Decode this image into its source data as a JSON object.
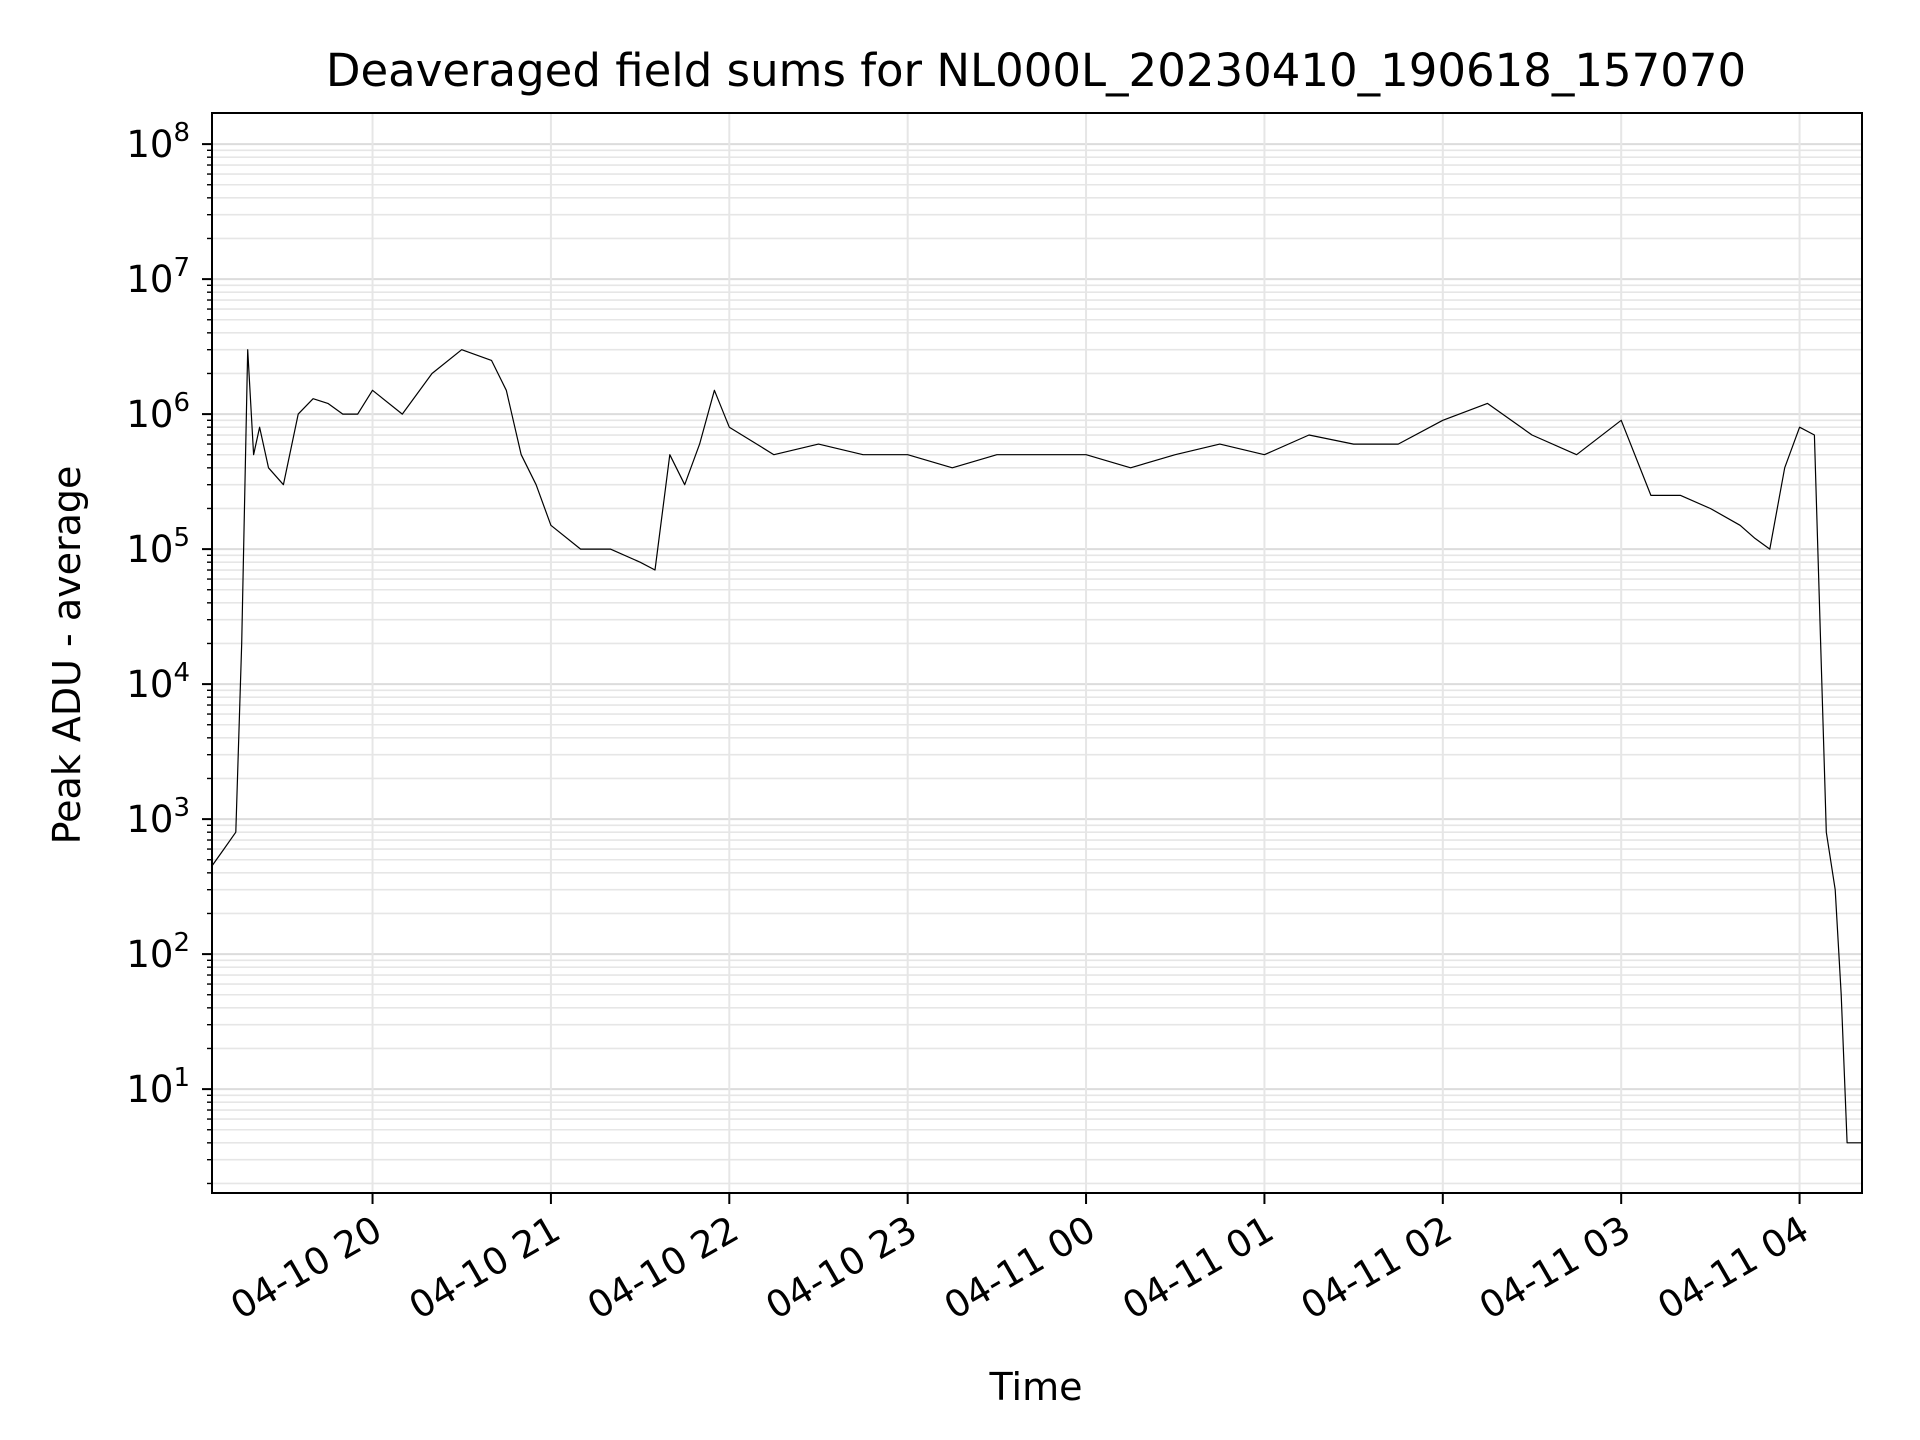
{
  "chart_data": {
    "type": "line",
    "title": "Deaveraged field sums for NL000L_20230410_190618_157070",
    "xlabel": "Time",
    "ylabel": "Peak ADU - average",
    "yscale": "log",
    "ylim": [
      1.7,
      170000000
    ],
    "xlim": [
      "2023-04-10 19:06",
      "2023-04-11 04:21"
    ],
    "x_tick_labels": [
      "04-10 20",
      "04-10 21",
      "04-10 22",
      "04-10 23",
      "04-11 00",
      "04-11 01",
      "04-11 02",
      "04-11 03",
      "04-11 04"
    ],
    "y_ticks": [
      10,
      100,
      1000,
      10000,
      100000,
      1000000,
      10000000,
      100000000
    ],
    "y_tick_labels": [
      {
        "base": "10",
        "exp": "1"
      },
      {
        "base": "10",
        "exp": "2"
      },
      {
        "base": "10",
        "exp": "3"
      },
      {
        "base": "10",
        "exp": "4"
      },
      {
        "base": "10",
        "exp": "5"
      },
      {
        "base": "10",
        "exp": "6"
      },
      {
        "base": "10",
        "exp": "7"
      },
      {
        "base": "10",
        "exp": "8"
      }
    ],
    "grid": true,
    "series": [
      {
        "color": "#000000",
        "x": [
          "2023-04-10 19:06",
          "2023-04-10 19:10",
          "2023-04-10 19:14",
          "2023-04-10 19:16",
          "2023-04-10 19:18",
          "2023-04-10 19:20",
          "2023-04-10 19:22",
          "2023-04-10 19:25",
          "2023-04-10 19:30",
          "2023-04-10 19:35",
          "2023-04-10 19:40",
          "2023-04-10 19:45",
          "2023-04-10 19:50",
          "2023-04-10 19:55",
          "2023-04-10 20:00",
          "2023-04-10 20:10",
          "2023-04-10 20:20",
          "2023-04-10 20:30",
          "2023-04-10 20:40",
          "2023-04-10 20:45",
          "2023-04-10 20:50",
          "2023-04-10 20:55",
          "2023-04-10 21:00",
          "2023-04-10 21:10",
          "2023-04-10 21:20",
          "2023-04-10 21:30",
          "2023-04-10 21:35",
          "2023-04-10 21:40",
          "2023-04-10 21:45",
          "2023-04-10 21:50",
          "2023-04-10 21:55",
          "2023-04-10 22:00",
          "2023-04-10 22:15",
          "2023-04-10 22:30",
          "2023-04-10 22:45",
          "2023-04-10 23:00",
          "2023-04-10 23:15",
          "2023-04-10 23:30",
          "2023-04-10 23:45",
          "2023-04-11 00:00",
          "2023-04-11 00:15",
          "2023-04-11 00:30",
          "2023-04-11 00:45",
          "2023-04-11 01:00",
          "2023-04-11 01:15",
          "2023-04-11 01:30",
          "2023-04-11 01:45",
          "2023-04-11 02:00",
          "2023-04-11 02:15",
          "2023-04-11 02:30",
          "2023-04-11 02:45",
          "2023-04-11 03:00",
          "2023-04-11 03:10",
          "2023-04-11 03:20",
          "2023-04-11 03:30",
          "2023-04-11 03:40",
          "2023-04-11 03:45",
          "2023-04-11 03:50",
          "2023-04-11 03:55",
          "2023-04-11 04:00",
          "2023-04-11 04:05",
          "2023-04-11 04:09",
          "2023-04-11 04:12",
          "2023-04-11 04:14",
          "2023-04-11 04:16",
          "2023-04-11 04:18",
          "2023-04-11 04:21"
        ],
        "y": [
          450,
          600,
          800,
          20000,
          3000000,
          500000,
          800000,
          400000,
          300000,
          1000000,
          1300000,
          1200000,
          1000000,
          1000000,
          1500000,
          1000000,
          2000000,
          3000000,
          2500000,
          1500000,
          500000,
          300000,
          150000,
          100000,
          100000,
          80000,
          70000,
          500000,
          300000,
          600000,
          1500000,
          800000,
          500000,
          600000,
          500000,
          500000,
          400000,
          500000,
          500000,
          500000,
          400000,
          500000,
          600000,
          500000,
          700000,
          600000,
          600000,
          900000,
          1200000,
          700000,
          500000,
          900000,
          250000,
          250000,
          200000,
          150000,
          120000,
          100000,
          400000,
          800000,
          700000,
          800,
          300,
          50,
          4,
          4,
          4
        ]
      }
    ]
  }
}
